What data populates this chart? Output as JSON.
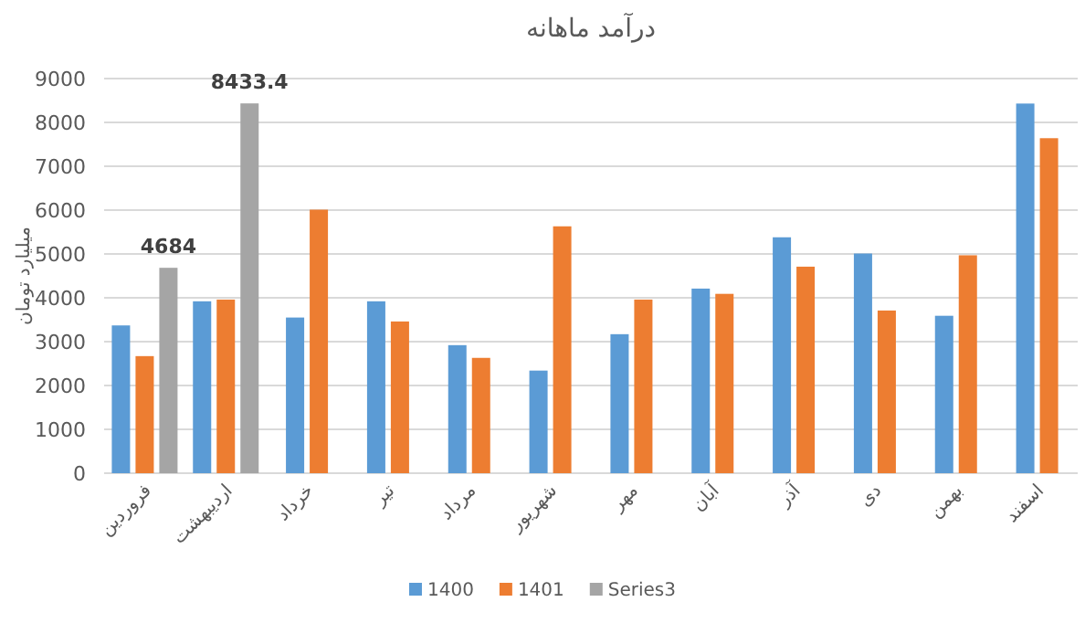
{
  "chart_data": {
    "type": "bar",
    "title": "درآمد ماهانه",
    "ylabel": "میلیارد تومان",
    "categories": [
      "فروردین",
      "اردیبهشت",
      "خرداد",
      "تیر",
      "مرداد",
      "شهریور",
      "مهر",
      "آبان",
      "آذر",
      "دی",
      "بهمن",
      "اسفند"
    ],
    "series": [
      {
        "name": "1400",
        "color": "#5b9bd5",
        "values": [
          3370,
          3920,
          3550,
          3920,
          2920,
          2340,
          3170,
          4210,
          5380,
          5010,
          3590,
          8430
        ]
      },
      {
        "name": "1401",
        "color": "#ed7d31",
        "values": [
          2670,
          3960,
          6010,
          3460,
          2630,
          5630,
          3960,
          4090,
          4710,
          3710,
          4970,
          7640
        ]
      },
      {
        "name": "Series3",
        "color": "#a5a5a5",
        "values": [
          4684,
          8433.4,
          null,
          null,
          null,
          null,
          null,
          null,
          null,
          null,
          null,
          null
        ],
        "value_labels": [
          "4684",
          "8433.4",
          null,
          null,
          null,
          null,
          null,
          null,
          null,
          null,
          null,
          null
        ]
      }
    ],
    "ylim": [
      0,
      9000
    ],
    "yticks": [
      0,
      1000,
      2000,
      3000,
      4000,
      5000,
      6000,
      7000,
      8000,
      9000
    ],
    "grid": "y",
    "legend": "bottom"
  }
}
